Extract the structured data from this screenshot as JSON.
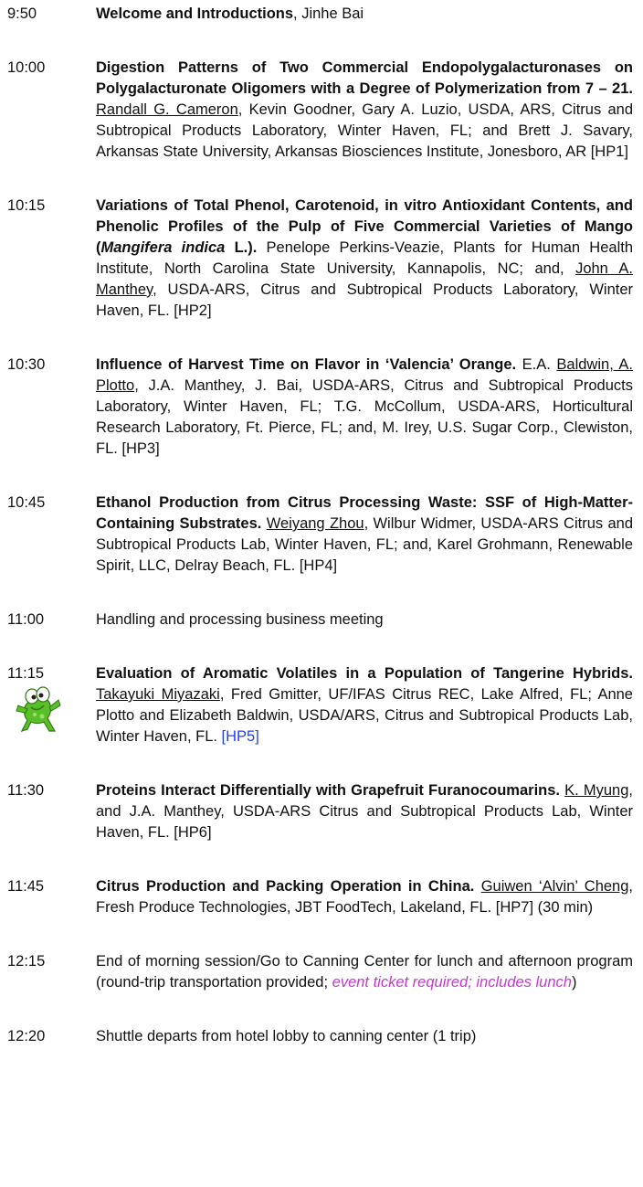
{
  "entries": [
    {
      "time": "9:50",
      "parts": [
        {
          "text": "Welcome and Introductions",
          "style": "bold"
        },
        {
          "text": ", Jinhe Bai",
          "style": "plain"
        }
      ]
    },
    {
      "time": "10:00",
      "parts": [
        {
          "text": "Digestion Patterns of Two Commercial Endopolygalacturonases on Polygalacturonate Oligomers with a Degree of Polymerization from 7 – 21. ",
          "style": "bold"
        },
        {
          "text": "Randall G. Cameron",
          "style": "underline"
        },
        {
          "text": ", Kevin Goodner, Gary A. Luzio, USDA, ARS, Citrus and Subtropical Products Laboratory, Winter Haven, FL; and Brett J. Savary, Arkansas State University, Arkansas Biosciences Institute, Jonesboro, AR [HP1]",
          "style": "plain"
        }
      ]
    },
    {
      "time": "10:15",
      "parts": [
        {
          "text": "Variations of Total Phenol, Carotenoid, in vitro Antioxidant Contents, and Phenolic Profiles of the Pulp of Five Commercial Varieties of Mango (",
          "style": "bold"
        },
        {
          "text": "Mangifera indica",
          "style": "bold-italic"
        },
        {
          "text": " L.). ",
          "style": "bold"
        },
        {
          "text": "Penelope Perkins-Veazie, Plants for Human Health Institute, North Carolina State University, Kannapolis, NC; and, ",
          "style": "plain"
        },
        {
          "text": "John A. Manthey",
          "style": "underline"
        },
        {
          "text": ", USDA-ARS, Citrus and Subtropical Products Laboratory, Winter Haven, FL. [HP2]",
          "style": "plain"
        }
      ]
    },
    {
      "time": "10:30",
      "parts": [
        {
          "text": "Influence of Harvest Time on Flavor in ‘Valencia’ Orange. ",
          "style": "bold"
        },
        {
          "text": "E.A. ",
          "style": "plain"
        },
        {
          "text": "Baldwin, A. Plotto",
          "style": "underline"
        },
        {
          "text": ", J.A. Manthey, J. Bai, USDA-ARS, Citrus and Subtropical Products Laboratory, Winter Haven, FL; T.G. McCollum, USDA-ARS, Horticultural Research Laboratory, Ft. Pierce, FL; and, M. Irey, U.S. Sugar Corp., Clewiston, FL. [HP3]",
          "style": "plain"
        }
      ]
    },
    {
      "time": "10:45",
      "parts": [
        {
          "text": "Ethanol Production from Citrus Processing Waste: SSF of High-Matter-Containing Substrates. ",
          "style": "bold"
        },
        {
          "text": "Weiyang Zhou",
          "style": "underline"
        },
        {
          "text": ", Wilbur Widmer, USDA-ARS Citrus and Subtropical Products Lab, Winter Haven, FL; and, Karel Grohmann, Renewable Spirit, LLC, Delray Beach, FL. [HP4]",
          "style": "plain"
        }
      ]
    },
    {
      "time": "11:00",
      "parts": [
        {
          "text": "Handling and processing business meeting",
          "style": "plain"
        }
      ]
    },
    {
      "time": "11:15",
      "parts": [
        {
          "text": "Evaluation of Aromatic Volatiles in a Population of Tangerine Hybrids. ",
          "style": "bold"
        },
        {
          "text": "Takayuki Miyazaki",
          "style": "underline"
        },
        {
          "text": ", Fred Gmitter, UF/IFAS Citrus REC, Lake Alfred, FL; Anne Plotto and Elizabeth Baldwin, USDA/ARS, Citrus and Subtropical Products Lab, Winter Haven, FL. ",
          "style": "plain"
        },
        {
          "text": "[HP5]",
          "style": "link"
        }
      ]
    },
    {
      "time": "11:30",
      "parts": [
        {
          "text": "Proteins Interact Differentially with Grapefruit Furanocoumarins. ",
          "style": "bold"
        },
        {
          "text": "K. Myung",
          "style": "underline"
        },
        {
          "text": ", and J.A. Manthey, USDA-ARS Citrus and Subtropical Products Lab, Winter Haven, FL. [HP6]",
          "style": "plain"
        }
      ]
    },
    {
      "time": "11:45",
      "parts": [
        {
          "text": "Citrus Production and Packing Operation in China. ",
          "style": "bold"
        },
        {
          "text": "Guiwen ‘Alvin’ Cheng",
          "style": "underline"
        },
        {
          "text": ", Fresh Produce Technologies, JBT FoodTech, Lakeland, FL. [HP7] (30 min)",
          "style": "plain"
        }
      ]
    },
    {
      "time": "12:15",
      "parts": [
        {
          "text": "End of morning session/Go to Canning Center for lunch and afternoon program (round-trip transportation provided; ",
          "style": "plain"
        },
        {
          "text": "event ticket required; includes lunch",
          "style": "highlight"
        },
        {
          "text": ")",
          "style": "plain"
        }
      ]
    },
    {
      "time": "12:20",
      "parts": [
        {
          "text": "Shuttle departs from hotel lobby to canning center (1 trip)",
          "style": "plain"
        }
      ]
    }
  ]
}
